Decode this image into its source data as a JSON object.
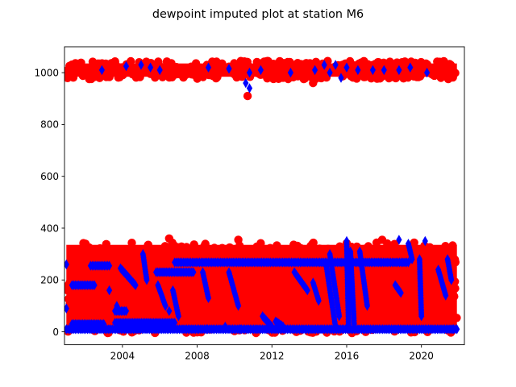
{
  "chart_data": {
    "type": "scatter",
    "title": "dewpoint imputed plot at station M6",
    "xlabel": "",
    "ylabel": "",
    "xlim": [
      2000.9,
      2022.3
    ],
    "ylim": [
      -50,
      1100
    ],
    "x_ticks": [
      2004,
      2008,
      2012,
      2016,
      2020
    ],
    "x_tick_labels": [
      "2004",
      "2008",
      "2012",
      "2016",
      "2020"
    ],
    "y_ticks": [
      0,
      200,
      400,
      600,
      800,
      1000
    ],
    "y_tick_labels": [
      "0",
      "200",
      "400",
      "600",
      "800",
      "1000"
    ],
    "grid": false,
    "legend": "none",
    "colors": {
      "observed": "#ff0000",
      "imputed": "#0000ff"
    },
    "series": [
      {
        "key": "observed",
        "marker": "circle",
        "color": "#ff0000",
        "bands": [
          {
            "x": [
              2001.0,
              2021.9
            ],
            "y": [
              -5,
              345
            ],
            "note": "dense lower cluster"
          },
          {
            "x": [
              2001.0,
              2021.9
            ],
            "y": [
              975,
              1045
            ],
            "note": "dense upper cluster"
          }
        ],
        "points": [
          [
            2010.7,
            910
          ],
          [
            2014.2,
            960
          ],
          [
            2006.5,
            360
          ],
          [
            2010.2,
            355
          ],
          [
            2017.9,
            355
          ]
        ]
      },
      {
        "key": "imputed",
        "marker": "diamond",
        "color": "#0000ff",
        "segments": [
          {
            "x": [
              2006.8,
              2019.3
            ],
            "y": [
              268,
              268
            ]
          },
          {
            "x": [
              2001.0,
              2021.9
            ],
            "y": [
              10,
              10
            ]
          },
          {
            "x": [
              2001.3,
              2003.0
            ],
            "y": [
              30,
              30
            ]
          },
          {
            "x": [
              2001.3,
              2002.5
            ],
            "y": [
              180,
              180
            ]
          },
          {
            "x": [
              2002.3,
              2003.3
            ],
            "y": [
              255,
              255
            ]
          },
          {
            "x": [
              2005.8,
              2007.8
            ],
            "y": [
              230,
              230
            ]
          },
          {
            "x": [
              2003.6,
              2006.8
            ],
            "y": [
              35,
              35
            ]
          },
          {
            "x": [
              2003.6,
              2004.2
            ],
            "y": [
              80,
              80
            ]
          },
          {
            "x": [
              2003.9,
              2004.7
            ],
            "y": [
              245,
              180
            ]
          },
          {
            "x": [
              2005.1,
              2005.3
            ],
            "y": [
              300,
              200
            ]
          },
          {
            "x": [
              2005.9,
              2006.3
            ],
            "y": [
              180,
              100
            ]
          },
          {
            "x": [
              2006.7,
              2007.0
            ],
            "y": [
              160,
              60
            ]
          },
          {
            "x": [
              2008.3,
              2008.6
            ],
            "y": [
              230,
              130
            ]
          },
          {
            "x": [
              2009.7,
              2010.2
            ],
            "y": [
              230,
              100
            ]
          },
          {
            "x": [
              2013.2,
              2013.9
            ],
            "y": [
              230,
              160
            ]
          },
          {
            "x": [
              2014.2,
              2014.5
            ],
            "y": [
              190,
              120
            ]
          },
          {
            "x": [
              2014.9,
              2015.4
            ],
            "y": [
              260,
              20
            ]
          },
          {
            "x": [
              2015.1,
              2015.6
            ],
            "y": [
              300,
              60
            ]
          },
          {
            "x": [
              2016.0,
              2016.1
            ],
            "y": [
              350,
              20
            ]
          },
          {
            "x": [
              2016.2,
              2016.4
            ],
            "y": [
              310,
              30
            ]
          },
          {
            "x": [
              2016.7,
              2017.1
            ],
            "y": [
              310,
              100
            ]
          },
          {
            "x": [
              2018.6,
              2018.9
            ],
            "y": [
              180,
              150
            ]
          },
          {
            "x": [
              2019.3,
              2019.5
            ],
            "y": [
              340,
              280
            ]
          },
          {
            "x": [
              2019.9,
              2020.0
            ],
            "y": [
              280,
              60
            ]
          },
          {
            "x": [
              2020.9,
              2021.3
            ],
            "y": [
              240,
              140
            ]
          },
          {
            "x": [
              2021.4,
              2021.6
            ],
            "y": [
              280,
              200
            ]
          },
          {
            "x": [
              2011.5,
              2012.0
            ],
            "y": [
              60,
              20
            ]
          },
          {
            "x": [
              2012.2,
              2012.6
            ],
            "y": [
              40,
              20
            ]
          }
        ],
        "points": [
          [
            2002.9,
            1010
          ],
          [
            2004.2,
            1025
          ],
          [
            2005.0,
            1030
          ],
          [
            2005.5,
            1020
          ],
          [
            2006.0,
            1010
          ],
          [
            2008.6,
            1020
          ],
          [
            2009.7,
            1015
          ],
          [
            2010.8,
            1000
          ],
          [
            2011.4,
            1010
          ],
          [
            2013.0,
            1000
          ],
          [
            2014.3,
            1010
          ],
          [
            2014.8,
            1030
          ],
          [
            2015.1,
            1000
          ],
          [
            2015.4,
            1030
          ],
          [
            2015.7,
            980
          ],
          [
            2016.0,
            1020
          ],
          [
            2016.6,
            1010
          ],
          [
            2017.4,
            1010
          ],
          [
            2018.0,
            1010
          ],
          [
            2018.8,
            1010
          ],
          [
            2019.4,
            1020
          ],
          [
            2020.3,
            1000
          ],
          [
            2010.6,
            960
          ],
          [
            2010.8,
            940
          ],
          [
            2001.0,
            260
          ],
          [
            2001.0,
            90
          ],
          [
            2003.3,
            160
          ],
          [
            2003.7,
            100
          ],
          [
            2006.5,
            80
          ],
          [
            2008.5,
            10
          ],
          [
            2009.5,
            20
          ],
          [
            2010.3,
            10
          ],
          [
            2018.8,
            355
          ],
          [
            2020.2,
            350
          ],
          [
            2021.7,
            10
          ]
        ]
      }
    ]
  }
}
